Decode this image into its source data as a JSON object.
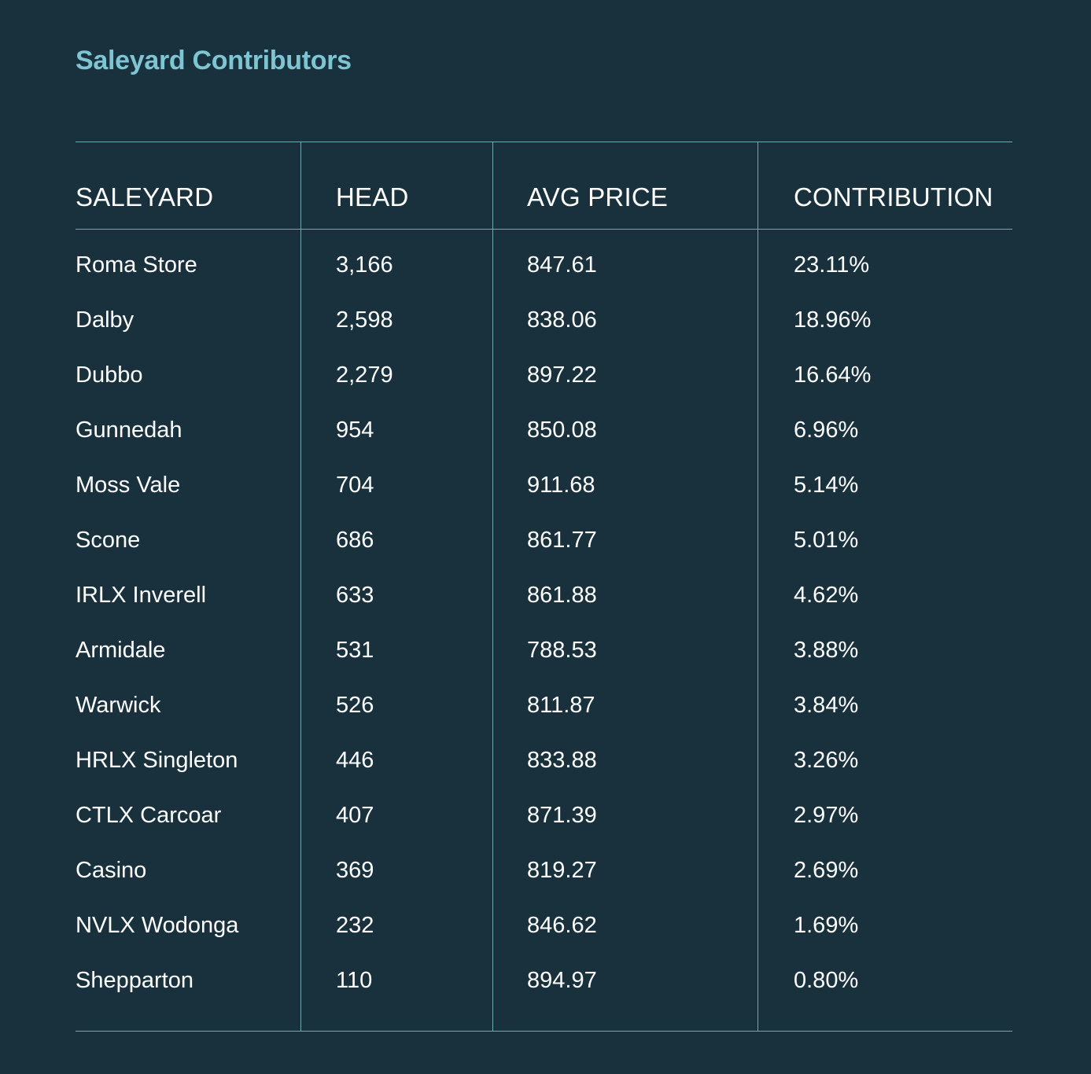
{
  "title": "Saleyard Contributors",
  "table": {
    "headers": [
      "SALEYARD",
      "HEAD",
      "AVG PRICE",
      "CONTRIBUTION"
    ],
    "rows": [
      [
        "Roma Store",
        "3,166",
        "847.61",
        "23.11%"
      ],
      [
        "Dalby",
        "2,598",
        "838.06",
        "18.96%"
      ],
      [
        "Dubbo",
        "2,279",
        "897.22",
        "16.64%"
      ],
      [
        "Gunnedah",
        "954",
        "850.08",
        "6.96%"
      ],
      [
        "Moss Vale",
        "704",
        "911.68",
        "5.14%"
      ],
      [
        "Scone",
        "686",
        "861.77",
        "5.01%"
      ],
      [
        "IRLX Inverell",
        "633",
        "861.88",
        "4.62%"
      ],
      [
        "Armidale",
        "531",
        "788.53",
        "3.88%"
      ],
      [
        "Warwick",
        "526",
        "811.87",
        "3.84%"
      ],
      [
        "HRLX Singleton",
        "446",
        "833.88",
        "3.26%"
      ],
      [
        "CTLX Carcoar",
        "407",
        "871.39",
        "2.97%"
      ],
      [
        "Casino",
        "369",
        "819.27",
        "2.69%"
      ],
      [
        "NVLX Wodonga",
        "232",
        "846.62",
        "1.69%"
      ],
      [
        "Shepparton",
        "110",
        "894.97",
        "0.80%"
      ]
    ]
  },
  "colors": {
    "background": "#19313d",
    "title": "#7cc6d3",
    "text": "#ffffff",
    "rule": "#6fa7b4"
  }
}
